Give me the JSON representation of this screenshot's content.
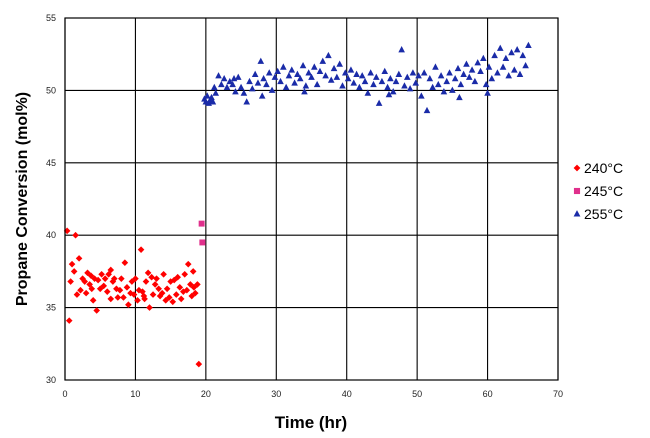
{
  "chart_data": {
    "type": "scatter",
    "xlabel": "Time (hr)",
    "ylabel": "Propane Conversion (mol%)",
    "xlim": [
      0,
      70
    ],
    "ylim": [
      30,
      55
    ],
    "x_ticks": [
      0,
      10,
      20,
      30,
      40,
      50,
      60,
      70
    ],
    "y_ticks": [
      30,
      35,
      40,
      45,
      50,
      55
    ],
    "grid": true,
    "legend_position": "right",
    "series": [
      {
        "name": "240°C",
        "color": "#ff0000",
        "marker": "diamond",
        "points": [
          [
            0.3,
            40.3
          ],
          [
            0.6,
            34.1
          ],
          [
            0.8,
            36.8
          ],
          [
            1.0,
            38.0
          ],
          [
            1.3,
            37.5
          ],
          [
            1.5,
            40.0
          ],
          [
            1.7,
            35.9
          ],
          [
            2.0,
            38.4
          ],
          [
            2.2,
            36.2
          ],
          [
            2.5,
            37.0
          ],
          [
            2.8,
            36.8
          ],
          [
            3.0,
            36.0
          ],
          [
            3.2,
            37.4
          ],
          [
            3.5,
            36.6
          ],
          [
            3.7,
            37.2
          ],
          [
            4.0,
            35.5
          ],
          [
            4.2,
            37.0
          ],
          [
            4.5,
            34.8
          ],
          [
            4.7,
            36.9
          ],
          [
            5.0,
            36.3
          ],
          [
            5.2,
            37.3
          ],
          [
            5.5,
            36.5
          ],
          [
            5.7,
            37.0
          ],
          [
            6.0,
            36.1
          ],
          [
            6.2,
            37.3
          ],
          [
            6.5,
            35.6
          ],
          [
            6.8,
            36.8
          ],
          [
            7.0,
            37.0
          ],
          [
            7.3,
            36.3
          ],
          [
            7.5,
            35.7
          ],
          [
            7.8,
            36.2
          ],
          [
            8.0,
            37.0
          ],
          [
            8.3,
            35.7
          ],
          [
            8.5,
            38.1
          ],
          [
            8.8,
            36.4
          ],
          [
            9.0,
            35.2
          ],
          [
            9.3,
            36.0
          ],
          [
            9.5,
            36.8
          ],
          [
            9.8,
            35.9
          ],
          [
            10.0,
            37.0
          ],
          [
            10.3,
            35.5
          ],
          [
            10.5,
            36.2
          ],
          [
            10.8,
            39.0
          ],
          [
            11.0,
            36.1
          ],
          [
            11.3,
            35.6
          ],
          [
            11.5,
            36.8
          ],
          [
            11.8,
            37.4
          ],
          [
            12.0,
            35.0
          ],
          [
            12.3,
            37.1
          ],
          [
            12.5,
            35.9
          ],
          [
            12.8,
            36.6
          ],
          [
            13.0,
            37.0
          ],
          [
            13.3,
            36.3
          ],
          [
            13.5,
            35.8
          ],
          [
            13.8,
            36.0
          ],
          [
            14.0,
            37.3
          ],
          [
            14.3,
            35.5
          ],
          [
            14.5,
            36.3
          ],
          [
            14.8,
            35.7
          ],
          [
            15.0,
            36.8
          ],
          [
            15.3,
            35.4
          ],
          [
            15.5,
            36.9
          ],
          [
            15.8,
            35.9
          ],
          [
            16.0,
            37.1
          ],
          [
            16.3,
            36.4
          ],
          [
            16.5,
            35.6
          ],
          [
            16.8,
            36.1
          ],
          [
            17.0,
            37.3
          ],
          [
            17.3,
            36.2
          ],
          [
            17.5,
            38.0
          ],
          [
            17.8,
            36.6
          ],
          [
            18.0,
            35.8
          ],
          [
            18.3,
            36.4
          ],
          [
            18.5,
            36.0
          ],
          [
            18.8,
            36.6
          ],
          [
            19.0,
            31.1
          ],
          [
            18.2,
            37.5
          ],
          [
            3.8,
            36.3
          ],
          [
            11.2,
            35.8
          ],
          [
            6.5,
            37.6
          ]
        ]
      },
      {
        "name": "245°C",
        "color": "#e0308c",
        "marker": "square",
        "points": [
          [
            19.4,
            40.8
          ],
          [
            19.5,
            39.5
          ]
        ]
      },
      {
        "name": "255°C",
        "color": "#1a2ba8",
        "marker": "triangle",
        "points": [
          [
            19.8,
            49.4
          ],
          [
            20.0,
            49.2
          ],
          [
            20.2,
            49.6
          ],
          [
            20.4,
            49.1
          ],
          [
            20.6,
            49.3
          ],
          [
            20.8,
            49.5
          ],
          [
            21.0,
            49.2
          ],
          [
            21.2,
            50.2
          ],
          [
            21.4,
            49.8
          ],
          [
            21.8,
            51.0
          ],
          [
            22.2,
            50.4
          ],
          [
            22.6,
            50.8
          ],
          [
            23.0,
            50.2
          ],
          [
            23.4,
            50.6
          ],
          [
            23.8,
            50.4
          ],
          [
            24.2,
            49.9
          ],
          [
            24.6,
            50.9
          ],
          [
            25.0,
            50.2
          ],
          [
            25.4,
            49.8
          ],
          [
            25.8,
            49.2
          ],
          [
            26.2,
            50.6
          ],
          [
            26.6,
            50.1
          ],
          [
            27.0,
            51.1
          ],
          [
            27.4,
            50.5
          ],
          [
            27.8,
            52.0
          ],
          [
            28.2,
            50.8
          ],
          [
            28.6,
            50.4
          ],
          [
            29.0,
            51.2
          ],
          [
            29.4,
            50.0
          ],
          [
            29.8,
            50.9
          ],
          [
            30.2,
            51.3
          ],
          [
            30.6,
            50.6
          ],
          [
            31.0,
            51.6
          ],
          [
            31.4,
            50.2
          ],
          [
            31.8,
            51.0
          ],
          [
            32.2,
            51.4
          ],
          [
            32.6,
            50.5
          ],
          [
            33.0,
            51.1
          ],
          [
            33.4,
            50.8
          ],
          [
            33.8,
            51.7
          ],
          [
            34.2,
            50.3
          ],
          [
            34.6,
            51.2
          ],
          [
            35.0,
            50.9
          ],
          [
            35.4,
            51.6
          ],
          [
            35.8,
            50.4
          ],
          [
            36.2,
            51.3
          ],
          [
            36.6,
            52.0
          ],
          [
            37.0,
            51.0
          ],
          [
            37.4,
            52.4
          ],
          [
            37.8,
            50.7
          ],
          [
            38.2,
            51.5
          ],
          [
            38.6,
            50.9
          ],
          [
            39.0,
            51.8
          ],
          [
            39.4,
            50.3
          ],
          [
            39.8,
            51.2
          ],
          [
            40.2,
            50.8
          ],
          [
            40.6,
            51.4
          ],
          [
            41.0,
            50.5
          ],
          [
            41.4,
            51.1
          ],
          [
            41.8,
            50.2
          ],
          [
            42.2,
            51.0
          ],
          [
            42.6,
            50.6
          ],
          [
            43.0,
            49.8
          ],
          [
            43.4,
            51.2
          ],
          [
            43.8,
            50.4
          ],
          [
            44.2,
            50.9
          ],
          [
            44.6,
            49.1
          ],
          [
            45.0,
            50.6
          ],
          [
            45.4,
            51.3
          ],
          [
            45.8,
            50.2
          ],
          [
            46.2,
            50.8
          ],
          [
            46.6,
            49.9
          ],
          [
            47.0,
            50.6
          ],
          [
            47.4,
            51.1
          ],
          [
            47.8,
            52.8
          ],
          [
            48.2,
            50.3
          ],
          [
            48.6,
            50.9
          ],
          [
            49.0,
            50.1
          ],
          [
            49.4,
            51.2
          ],
          [
            49.8,
            50.5
          ],
          [
            50.2,
            51.0
          ],
          [
            50.6,
            49.6
          ],
          [
            51.0,
            51.2
          ],
          [
            51.4,
            48.6
          ],
          [
            51.8,
            50.8
          ],
          [
            52.2,
            50.2
          ],
          [
            52.6,
            51.6
          ],
          [
            53.0,
            50.4
          ],
          [
            53.4,
            51.0
          ],
          [
            53.8,
            49.9
          ],
          [
            54.2,
            50.6
          ],
          [
            54.6,
            51.2
          ],
          [
            55.0,
            50.0
          ],
          [
            55.4,
            50.8
          ],
          [
            55.8,
            51.5
          ],
          [
            56.2,
            50.4
          ],
          [
            56.6,
            51.1
          ],
          [
            57.0,
            51.8
          ],
          [
            57.4,
            50.9
          ],
          [
            57.8,
            51.4
          ],
          [
            58.2,
            50.6
          ],
          [
            58.6,
            51.9
          ],
          [
            59.0,
            51.3
          ],
          [
            59.4,
            52.2
          ],
          [
            59.8,
            50.4
          ],
          [
            60.2,
            51.6
          ],
          [
            60.6,
            50.8
          ],
          [
            61.0,
            52.4
          ],
          [
            61.4,
            51.2
          ],
          [
            61.8,
            52.9
          ],
          [
            62.2,
            51.6
          ],
          [
            62.6,
            52.2
          ],
          [
            63.0,
            51.0
          ],
          [
            63.4,
            52.6
          ],
          [
            63.8,
            51.4
          ],
          [
            64.2,
            52.8
          ],
          [
            64.6,
            51.1
          ],
          [
            65.0,
            52.4
          ],
          [
            65.4,
            51.7
          ],
          [
            65.8,
            53.1
          ],
          [
            60.0,
            49.8
          ],
          [
            56.0,
            49.5
          ],
          [
            46.0,
            49.7
          ],
          [
            34.0,
            49.9
          ],
          [
            28.0,
            49.6
          ],
          [
            24.0,
            50.8
          ]
        ]
      }
    ]
  }
}
